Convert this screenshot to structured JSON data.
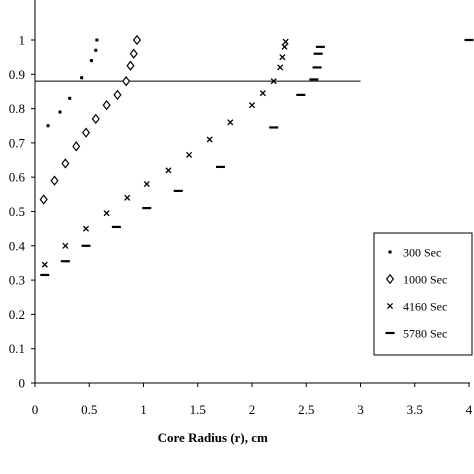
{
  "chart_data": {
    "type": "scatter",
    "title": "",
    "xlabel": "Core Radius (r), cm",
    "ylabel": "",
    "xlim": [
      0,
      4
    ],
    "ylim": [
      0,
      1.05
    ],
    "x_ticks": [
      "0",
      "0.5",
      "1",
      "1.5",
      "2",
      "2.5",
      "3",
      "3.5",
      "4"
    ],
    "y_ticks": [
      "0",
      "0.1",
      "0.2",
      "0.3",
      "0.4",
      "0.5",
      "0.6",
      "0.7",
      "0.8",
      "0.9",
      "1"
    ],
    "grid": false,
    "legend_position": "right",
    "reference_line": {
      "y": 0.88,
      "x_range": [
        0,
        3
      ]
    },
    "series": [
      {
        "name": "300 Sec",
        "marker": "dot",
        "points": [
          [
            0.12,
            0.75
          ],
          [
            0.23,
            0.79
          ],
          [
            0.32,
            0.83
          ],
          [
            0.43,
            0.89
          ],
          [
            0.52,
            0.94
          ],
          [
            0.56,
            0.97
          ],
          [
            0.57,
            1.0
          ]
        ]
      },
      {
        "name": "1000 Sec",
        "marker": "diamond",
        "points": [
          [
            0.08,
            0.535
          ],
          [
            0.18,
            0.59
          ],
          [
            0.28,
            0.64
          ],
          [
            0.38,
            0.69
          ],
          [
            0.47,
            0.73
          ],
          [
            0.56,
            0.77
          ],
          [
            0.66,
            0.81
          ],
          [
            0.76,
            0.84
          ],
          [
            0.84,
            0.88
          ],
          [
            0.88,
            0.925
          ],
          [
            0.91,
            0.96
          ],
          [
            0.94,
            1.0
          ]
        ]
      },
      {
        "name": "4160 Sec",
        "marker": "x",
        "points": [
          [
            0.09,
            0.345
          ],
          [
            0.28,
            0.4
          ],
          [
            0.47,
            0.45
          ],
          [
            0.66,
            0.495
          ],
          [
            0.85,
            0.54
          ],
          [
            1.03,
            0.58
          ],
          [
            1.23,
            0.62
          ],
          [
            1.42,
            0.665
          ],
          [
            1.61,
            0.71
          ],
          [
            1.8,
            0.76
          ],
          [
            2.0,
            0.81
          ],
          [
            2.1,
            0.845
          ],
          [
            2.2,
            0.88
          ],
          [
            2.26,
            0.92
          ],
          [
            2.28,
            0.95
          ],
          [
            2.3,
            0.98
          ],
          [
            2.31,
            0.995
          ]
        ]
      },
      {
        "name": "5780 Sec",
        "marker": "dash",
        "points": [
          [
            0.09,
            0.315
          ],
          [
            0.28,
            0.355
          ],
          [
            0.47,
            0.4
          ],
          [
            0.75,
            0.455
          ],
          [
            1.03,
            0.51
          ],
          [
            1.32,
            0.56
          ],
          [
            1.71,
            0.63
          ],
          [
            2.2,
            0.745
          ],
          [
            2.45,
            0.84
          ],
          [
            2.57,
            0.885
          ],
          [
            2.6,
            0.92
          ],
          [
            2.61,
            0.96
          ],
          [
            2.63,
            0.98
          ],
          [
            4.0,
            1.0
          ]
        ]
      }
    ]
  }
}
